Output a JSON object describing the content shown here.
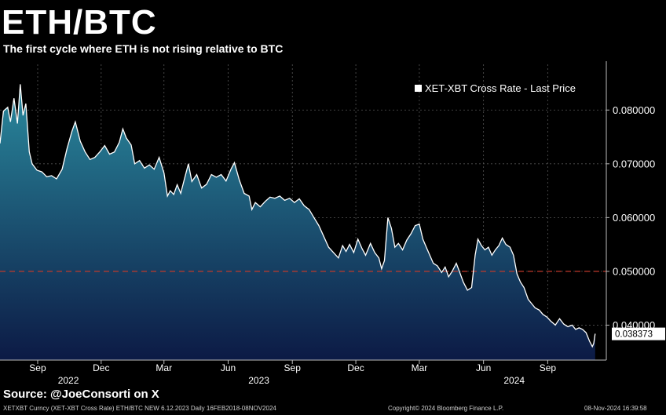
{
  "header": {
    "title": "ETH/BTC",
    "subtitle": "The first cycle where ETH is not rising relative to BTC"
  },
  "source": "Source: @JoeConsorti on X",
  "footer": {
    "left": "XETXBT Curncy (XET-XBT Cross Rate) ETH/BTC NEW 6.12.2023  Daily 16FEB2018-08NOV2024",
    "center": "Copyright© 2024 Bloomberg Finance L.P.",
    "right": "08-Nov-2024 16:39:58"
  },
  "colors": {
    "background": "#000000",
    "line": "#ffffff",
    "area_top": "#2a8a9e",
    "area_bottom": "#0c1a45",
    "reference_line": "#c0392b",
    "grid": "#555555"
  },
  "chart_data": {
    "type": "area",
    "legend": {
      "label": "XET-XBT Cross Rate - Last Price",
      "position": "top-right"
    },
    "x_tick_labels": [
      "Sep",
      "Dec",
      "Mar",
      "Jun",
      "Sep",
      "Dec",
      "Mar",
      "Jun",
      "Sep"
    ],
    "x_tick_dates": [
      "2022-09-01",
      "2022-12-01",
      "2023-03-01",
      "2023-06-01",
      "2023-09-01",
      "2023-12-01",
      "2024-03-01",
      "2024-06-01",
      "2024-09-01"
    ],
    "year_labels": [
      {
        "label": "2022",
        "date": "2022-10-15"
      },
      {
        "label": "2023",
        "date": "2023-07-15"
      },
      {
        "label": "2024",
        "date": "2024-07-15"
      }
    ],
    "xlim": [
      "2022-07-09",
      "2024-11-24"
    ],
    "y_tick_labels": [
      "0.080000",
      "0.070000",
      "0.060000",
      "0.050000",
      "0.040000"
    ],
    "y_ticks": [
      0.08,
      0.07,
      0.06,
      0.05,
      0.04
    ],
    "ylim": [
      0.0335,
      0.0885
    ],
    "grid": true,
    "reference_line": 0.05,
    "last_value_label": "0.038373",
    "last_value": 0.038373,
    "series": [
      {
        "name": "XET-XBT Cross Rate - Last Price",
        "points": [
          [
            "2022-07-09",
            0.0738
          ],
          [
            "2022-07-14",
            0.0798
          ],
          [
            "2022-07-20",
            0.0805
          ],
          [
            "2022-07-24",
            0.0778
          ],
          [
            "2022-07-29",
            0.0822
          ],
          [
            "2022-08-03",
            0.0775
          ],
          [
            "2022-08-07",
            0.0848
          ],
          [
            "2022-08-11",
            0.079
          ],
          [
            "2022-08-15",
            0.0812
          ],
          [
            "2022-08-20",
            0.0722
          ],
          [
            "2022-08-24",
            0.07
          ],
          [
            "2022-08-31",
            0.0688
          ],
          [
            "2022-09-07",
            0.0685
          ],
          [
            "2022-09-14",
            0.0676
          ],
          [
            "2022-09-21",
            0.0678
          ],
          [
            "2022-09-28",
            0.0672
          ],
          [
            "2022-10-06",
            0.069
          ],
          [
            "2022-10-13",
            0.0728
          ],
          [
            "2022-10-20",
            0.076
          ],
          [
            "2022-10-25",
            0.0778
          ],
          [
            "2022-11-01",
            0.0742
          ],
          [
            "2022-11-08",
            0.0722
          ],
          [
            "2022-11-15",
            0.0708
          ],
          [
            "2022-11-22",
            0.0712
          ],
          [
            "2022-11-29",
            0.0722
          ],
          [
            "2022-12-06",
            0.0734
          ],
          [
            "2022-12-13",
            0.0718
          ],
          [
            "2022-12-20",
            0.0722
          ],
          [
            "2022-12-27",
            0.074
          ],
          [
            "2023-01-01",
            0.0765
          ],
          [
            "2023-01-06",
            0.0748
          ],
          [
            "2023-01-13",
            0.0735
          ],
          [
            "2023-01-18",
            0.07
          ],
          [
            "2023-01-25",
            0.0706
          ],
          [
            "2023-02-01",
            0.0692
          ],
          [
            "2023-02-08",
            0.0698
          ],
          [
            "2023-02-15",
            0.069
          ],
          [
            "2023-02-22",
            0.0712
          ],
          [
            "2023-03-01",
            0.0683
          ],
          [
            "2023-03-06",
            0.064
          ],
          [
            "2023-03-10",
            0.065
          ],
          [
            "2023-03-15",
            0.0643
          ],
          [
            "2023-03-20",
            0.0661
          ],
          [
            "2023-03-25",
            0.0645
          ],
          [
            "2023-03-31",
            0.0675
          ],
          [
            "2023-04-05",
            0.07
          ],
          [
            "2023-04-10",
            0.0667
          ],
          [
            "2023-04-17",
            0.068
          ],
          [
            "2023-04-24",
            0.0655
          ],
          [
            "2023-05-01",
            0.0662
          ],
          [
            "2023-05-08",
            0.068
          ],
          [
            "2023-05-15",
            0.0675
          ],
          [
            "2023-05-22",
            0.068
          ],
          [
            "2023-05-29",
            0.0668
          ],
          [
            "2023-06-05",
            0.069
          ],
          [
            "2023-06-10",
            0.0702
          ],
          [
            "2023-06-17",
            0.067
          ],
          [
            "2023-06-24",
            0.0645
          ],
          [
            "2023-07-01",
            0.064
          ],
          [
            "2023-07-05",
            0.0615
          ],
          [
            "2023-07-10",
            0.0628
          ],
          [
            "2023-07-17",
            0.062
          ],
          [
            "2023-07-24",
            0.063
          ],
          [
            "2023-07-31",
            0.0638
          ],
          [
            "2023-08-07",
            0.0636
          ],
          [
            "2023-08-14",
            0.064
          ],
          [
            "2023-08-21",
            0.0632
          ],
          [
            "2023-08-28",
            0.0636
          ],
          [
            "2023-09-04",
            0.0628
          ],
          [
            "2023-09-11",
            0.0635
          ],
          [
            "2023-09-18",
            0.0622
          ],
          [
            "2023-09-25",
            0.0615
          ],
          [
            "2023-10-02",
            0.06
          ],
          [
            "2023-10-09",
            0.0585
          ],
          [
            "2023-10-16",
            0.0565
          ],
          [
            "2023-10-23",
            0.0545
          ],
          [
            "2023-10-30",
            0.0535
          ],
          [
            "2023-11-06",
            0.0525
          ],
          [
            "2023-11-12",
            0.0548
          ],
          [
            "2023-11-17",
            0.0537
          ],
          [
            "2023-11-22",
            0.055
          ],
          [
            "2023-11-28",
            0.0535
          ],
          [
            "2023-12-04",
            0.056
          ],
          [
            "2023-12-10",
            0.0542
          ],
          [
            "2023-12-15",
            0.053
          ],
          [
            "2023-12-22",
            0.0552
          ],
          [
            "2023-12-28",
            0.0535
          ],
          [
            "2024-01-03",
            0.0525
          ],
          [
            "2024-01-07",
            0.0505
          ],
          [
            "2024-01-11",
            0.052
          ],
          [
            "2024-01-16",
            0.06
          ],
          [
            "2024-01-21",
            0.058
          ],
          [
            "2024-01-26",
            0.0545
          ],
          [
            "2024-01-31",
            0.0552
          ],
          [
            "2024-02-06",
            0.054
          ],
          [
            "2024-02-12",
            0.0558
          ],
          [
            "2024-02-18",
            0.057
          ],
          [
            "2024-02-24",
            0.0585
          ],
          [
            "2024-03-01",
            0.0588
          ],
          [
            "2024-03-06",
            0.056
          ],
          [
            "2024-03-11",
            0.0545
          ],
          [
            "2024-03-16",
            0.053
          ],
          [
            "2024-03-21",
            0.0515
          ],
          [
            "2024-03-27",
            0.051
          ],
          [
            "2024-04-02",
            0.0498
          ],
          [
            "2024-04-07",
            0.0508
          ],
          [
            "2024-04-12",
            0.049
          ],
          [
            "2024-04-17",
            0.05
          ],
          [
            "2024-04-23",
            0.0515
          ],
          [
            "2024-04-28",
            0.0498
          ],
          [
            "2024-05-03",
            0.048
          ],
          [
            "2024-05-09",
            0.0465
          ],
          [
            "2024-05-15",
            0.047
          ],
          [
            "2024-05-20",
            0.053
          ],
          [
            "2024-05-24",
            0.056
          ],
          [
            "2024-05-29",
            0.0548
          ],
          [
            "2024-06-03",
            0.054
          ],
          [
            "2024-06-08",
            0.0545
          ],
          [
            "2024-06-13",
            0.053
          ],
          [
            "2024-06-18",
            0.054
          ],
          [
            "2024-06-23",
            0.0548
          ],
          [
            "2024-06-28",
            0.0562
          ],
          [
            "2024-07-03",
            0.055
          ],
          [
            "2024-07-09",
            0.0545
          ],
          [
            "2024-07-14",
            0.053
          ],
          [
            "2024-07-19",
            0.0495
          ],
          [
            "2024-07-24",
            0.048
          ],
          [
            "2024-07-29",
            0.047
          ],
          [
            "2024-08-04",
            0.0448
          ],
          [
            "2024-08-09",
            0.044
          ],
          [
            "2024-08-14",
            0.0432
          ],
          [
            "2024-08-20",
            0.0428
          ],
          [
            "2024-08-25",
            0.042
          ],
          [
            "2024-08-31",
            0.0415
          ],
          [
            "2024-09-05",
            0.0408
          ],
          [
            "2024-09-12",
            0.04
          ],
          [
            "2024-09-18",
            0.0412
          ],
          [
            "2024-09-24",
            0.0402
          ],
          [
            "2024-09-30",
            0.0397
          ],
          [
            "2024-10-06",
            0.04
          ],
          [
            "2024-10-11",
            0.0392
          ],
          [
            "2024-10-16",
            0.0395
          ],
          [
            "2024-10-21",
            0.0392
          ],
          [
            "2024-10-26",
            0.0386
          ],
          [
            "2024-10-31",
            0.037
          ],
          [
            "2024-11-04",
            0.036
          ],
          [
            "2024-11-06",
            0.0366
          ],
          [
            "2024-11-08",
            0.0384
          ]
        ]
      }
    ]
  }
}
